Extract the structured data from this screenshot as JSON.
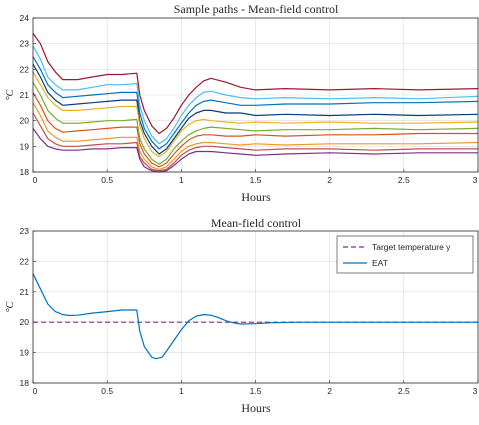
{
  "chart_data": [
    {
      "type": "line",
      "title": "Sample paths - Mean-field control",
      "xlabel": "Hours",
      "ylabel": "°C",
      "xlim": [
        0,
        3
      ],
      "ylim": [
        18,
        24
      ],
      "xticks": [
        0,
        0.5,
        1,
        1.5,
        2,
        2.5,
        3
      ],
      "xtick_labels": [
        "0",
        "0.5",
        "1",
        "1.5",
        "2",
        "2.5",
        "3"
      ],
      "yticks": [
        18,
        19,
        20,
        21,
        22,
        23,
        24
      ],
      "ytick_labels": [
        "18",
        "19",
        "20",
        "21",
        "22",
        "23",
        "24"
      ],
      "grid": true,
      "legend": null,
      "x": [
        0,
        0.05,
        0.1,
        0.15,
        0.2,
        0.3,
        0.4,
        0.5,
        0.6,
        0.7,
        0.72,
        0.75,
        0.8,
        0.85,
        0.9,
        0.95,
        1.0,
        1.05,
        1.1,
        1.15,
        1.2,
        1.3,
        1.4,
        1.5,
        1.7,
        2.0,
        2.3,
        2.6,
        3.0
      ],
      "series": [
        {
          "color": "#a2142f",
          "values": [
            23.4,
            23.0,
            22.3,
            21.9,
            21.6,
            21.6,
            21.7,
            21.8,
            21.8,
            21.85,
            21.0,
            20.4,
            19.8,
            19.5,
            19.7,
            20.1,
            20.6,
            21.0,
            21.3,
            21.55,
            21.65,
            21.5,
            21.3,
            21.2,
            21.25,
            21.2,
            21.25,
            21.2,
            21.25
          ]
        },
        {
          "color": "#4dbeee",
          "values": [
            22.9,
            22.4,
            21.7,
            21.4,
            21.2,
            21.2,
            21.3,
            21.4,
            21.4,
            21.45,
            20.6,
            20.0,
            19.4,
            19.1,
            19.3,
            19.7,
            20.2,
            20.6,
            20.9,
            21.1,
            21.15,
            21.0,
            20.9,
            20.85,
            20.9,
            20.85,
            20.9,
            20.85,
            20.95
          ]
        },
        {
          "color": "#0072bd",
          "values": [
            22.5,
            22.0,
            21.4,
            21.1,
            20.9,
            20.95,
            21.0,
            21.05,
            21.1,
            21.1,
            20.3,
            19.7,
            19.2,
            18.9,
            19.1,
            19.5,
            19.9,
            20.3,
            20.6,
            20.75,
            20.8,
            20.7,
            20.6,
            20.6,
            20.65,
            20.65,
            20.7,
            20.7,
            20.75
          ]
        },
        {
          "color": "#0b3a7a",
          "values": [
            22.2,
            21.7,
            21.1,
            20.8,
            20.6,
            20.65,
            20.7,
            20.75,
            20.8,
            20.8,
            20.0,
            19.5,
            19.0,
            18.7,
            18.9,
            19.3,
            19.7,
            20.1,
            20.3,
            20.4,
            20.4,
            20.3,
            20.3,
            20.2,
            20.25,
            20.2,
            20.25,
            20.2,
            20.25
          ]
        },
        {
          "color": "#edb120",
          "values": [
            21.9,
            21.4,
            20.9,
            20.6,
            20.4,
            20.4,
            20.45,
            20.5,
            20.55,
            20.55,
            19.8,
            19.3,
            18.8,
            18.6,
            18.8,
            19.2,
            19.6,
            19.85,
            20.0,
            20.05,
            20.0,
            19.95,
            19.9,
            19.95,
            19.9,
            19.95,
            19.9,
            19.9,
            19.95
          ]
        },
        {
          "color": "#77ac30",
          "values": [
            21.5,
            21.0,
            20.4,
            20.1,
            19.9,
            19.9,
            19.95,
            20.0,
            20.0,
            20.05,
            19.3,
            18.9,
            18.5,
            18.3,
            18.5,
            18.9,
            19.2,
            19.45,
            19.6,
            19.7,
            19.75,
            19.7,
            19.65,
            19.6,
            19.65,
            19.65,
            19.7,
            19.65,
            19.7
          ]
        },
        {
          "color": "#d95319",
          "values": [
            21.1,
            20.6,
            20.0,
            19.7,
            19.55,
            19.6,
            19.65,
            19.7,
            19.75,
            19.75,
            19.1,
            18.7,
            18.35,
            18.2,
            18.35,
            18.7,
            19.0,
            19.25,
            19.4,
            19.45,
            19.45,
            19.4,
            19.4,
            19.45,
            19.4,
            19.45,
            19.45,
            19.5,
            19.5
          ]
        },
        {
          "color": "#e89a2c",
          "values": [
            20.7,
            20.2,
            19.6,
            19.35,
            19.2,
            19.2,
            19.25,
            19.3,
            19.35,
            19.35,
            18.8,
            18.5,
            18.2,
            18.1,
            18.2,
            18.5,
            18.8,
            19.0,
            19.1,
            19.15,
            19.15,
            19.1,
            19.05,
            19.1,
            19.05,
            19.1,
            19.1,
            19.1,
            19.15
          ]
        },
        {
          "color": "#c0504d",
          "values": [
            20.3,
            19.8,
            19.3,
            19.1,
            19.0,
            19.0,
            19.05,
            19.1,
            19.1,
            19.15,
            18.6,
            18.35,
            18.1,
            18.05,
            18.1,
            18.35,
            18.65,
            18.85,
            18.95,
            19.0,
            19.0,
            18.95,
            18.9,
            18.85,
            18.9,
            18.9,
            18.85,
            18.9,
            18.9
          ]
        },
        {
          "color": "#7e2f8e",
          "values": [
            19.7,
            19.3,
            19.0,
            18.9,
            18.85,
            18.85,
            18.9,
            18.9,
            18.95,
            18.95,
            18.5,
            18.2,
            18.05,
            18.0,
            18.05,
            18.25,
            18.5,
            18.7,
            18.8,
            18.8,
            18.8,
            18.75,
            18.7,
            18.65,
            18.7,
            18.75,
            18.7,
            18.75,
            18.75
          ]
        }
      ]
    },
    {
      "type": "line",
      "title": "Mean-field control",
      "xlabel": "Hours",
      "ylabel": "°C",
      "xlim": [
        0,
        3
      ],
      "ylim": [
        18,
        23
      ],
      "xticks": [
        0,
        0.5,
        1,
        1.5,
        2,
        2.5,
        3
      ],
      "xtick_labels": [
        "0",
        "0.5",
        "1",
        "1.5",
        "2",
        "2.5",
        "3"
      ],
      "yticks": [
        18,
        19,
        20,
        21,
        22,
        23
      ],
      "ytick_labels": [
        "18",
        "19",
        "20",
        "21",
        "22",
        "23"
      ],
      "grid": true,
      "legend": "top-right",
      "x": [
        0,
        0.05,
        0.1,
        0.15,
        0.2,
        0.25,
        0.3,
        0.4,
        0.5,
        0.6,
        0.7,
        0.72,
        0.75,
        0.8,
        0.83,
        0.87,
        0.9,
        0.95,
        1.0,
        1.05,
        1.1,
        1.15,
        1.2,
        1.25,
        1.3,
        1.35,
        1.4,
        1.5,
        1.6,
        1.8,
        2.0,
        2.5,
        3.0
      ],
      "series": [
        {
          "name": "Target temperature y",
          "color": "#7e2f8e",
          "dash": true,
          "values": [
            20,
            20,
            20,
            20,
            20,
            20,
            20,
            20,
            20,
            20,
            20,
            20,
            20,
            20,
            20,
            20,
            20,
            20,
            20,
            20,
            20,
            20,
            20,
            20,
            20,
            20,
            20,
            20,
            20,
            20,
            20,
            20,
            20
          ]
        },
        {
          "name": "EAT",
          "color": "#0072bd",
          "dash": false,
          "values": [
            21.6,
            21.1,
            20.6,
            20.35,
            20.25,
            20.22,
            20.23,
            20.3,
            20.35,
            20.4,
            20.4,
            19.7,
            19.2,
            18.85,
            18.8,
            18.85,
            19.05,
            19.4,
            19.75,
            20.05,
            20.2,
            20.25,
            20.23,
            20.15,
            20.05,
            19.98,
            19.94,
            19.95,
            19.98,
            20.0,
            20.0,
            20.0,
            20.0
          ]
        }
      ]
    }
  ]
}
